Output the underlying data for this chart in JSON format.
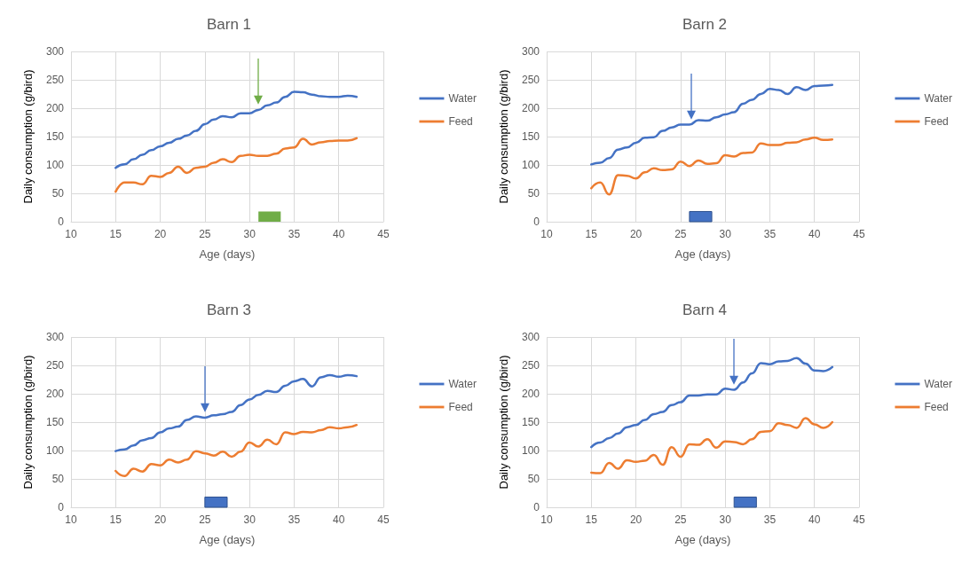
{
  "chart_data": [
    {
      "type": "line",
      "title": "Barn 1",
      "xlabel": "Age (days)",
      "ylabel": "Daily consumption (g/bird)",
      "xlim": [
        10,
        45
      ],
      "xticks": [
        10,
        15,
        20,
        25,
        30,
        35,
        40,
        45
      ],
      "ylim": [
        0,
        300
      ],
      "yticks": [
        0,
        50,
        100,
        150,
        200,
        250,
        300
      ],
      "grid": true,
      "legend": "right",
      "marker": "none",
      "x": [
        15,
        16,
        17,
        18,
        19,
        20,
        21,
        22,
        23,
        24,
        25,
        26,
        27,
        28,
        29,
        30,
        31,
        32,
        33,
        34,
        35,
        36,
        37,
        38,
        39,
        40,
        41,
        42
      ],
      "series": [
        {
          "name": "Water",
          "color": "#4472c4",
          "values": [
            95,
            101,
            110,
            118,
            126,
            133,
            139,
            146,
            152,
            160,
            172,
            180,
            186,
            184,
            191,
            191,
            197,
            205,
            210,
            220,
            229,
            228,
            224,
            221,
            220,
            220,
            222,
            220
          ]
        },
        {
          "name": "Feed",
          "color": "#ed7d31",
          "values": [
            53,
            69,
            69,
            66,
            81,
            79,
            86,
            97,
            86,
            95,
            97,
            104,
            110,
            105,
            116,
            118,
            116,
            116,
            120,
            129,
            131,
            146,
            136,
            140,
            142,
            143,
            143,
            147
          ]
        }
      ],
      "ref_lines": [
        {
          "axis": "x",
          "value": 31,
          "color": "#70ad47"
        }
      ],
      "bands": [
        {
          "axis": "x",
          "from": 31,
          "to": 33.5,
          "color": "#70ad47"
        }
      ]
    },
    {
      "type": "line",
      "title": "Barn 2",
      "xlabel": "Age (days)",
      "ylabel": "Daily consumption (g/bird)",
      "xlim": [
        10,
        45
      ],
      "xticks": [
        10,
        15,
        20,
        25,
        30,
        35,
        40,
        45
      ],
      "ylim": [
        0,
        300
      ],
      "yticks": [
        0,
        50,
        100,
        150,
        200,
        250,
        300
      ],
      "grid": true,
      "legend": "right",
      "marker": "none",
      "x": [
        15,
        16,
        17,
        18,
        19,
        20,
        21,
        22,
        23,
        24,
        25,
        26,
        27,
        28,
        29,
        30,
        31,
        32,
        33,
        34,
        35,
        36,
        37,
        38,
        39,
        40,
        41,
        42
      ],
      "series": [
        {
          "name": "Water",
          "color": "#4472c4",
          "values": [
            101,
            104,
            112,
            127,
            131,
            139,
            148,
            149,
            160,
            166,
            171,
            171,
            179,
            178,
            184,
            189,
            193,
            208,
            215,
            225,
            234,
            232,
            225,
            237,
            232,
            239,
            240,
            241
          ]
        },
        {
          "name": "Feed",
          "color": "#ed7d31",
          "values": [
            59,
            69,
            48,
            82,
            81,
            76,
            87,
            94,
            91,
            92,
            106,
            98,
            108,
            102,
            103,
            117,
            115,
            121,
            122,
            138,
            135,
            135,
            139,
            140,
            145,
            148,
            144,
            145
          ]
        }
      ],
      "ref_lines": [
        {
          "axis": "x",
          "value": 26.2,
          "color": "#4472c4"
        }
      ],
      "bands": [
        {
          "axis": "x",
          "from": 26,
          "to": 28.5,
          "color": "#4472c4"
        }
      ]
    },
    {
      "type": "line",
      "title": "Barn 3",
      "xlabel": "Age (days)",
      "ylabel": "Daily consumption (g/bird)",
      "xlim": [
        10,
        45
      ],
      "xticks": [
        10,
        15,
        20,
        25,
        30,
        35,
        40,
        45
      ],
      "ylim": [
        0,
        300
      ],
      "yticks": [
        0,
        50,
        100,
        150,
        200,
        250,
        300
      ],
      "grid": true,
      "legend": "right",
      "marker": "none",
      "x": [
        15,
        16,
        17,
        18,
        19,
        20,
        21,
        22,
        23,
        24,
        25,
        26,
        27,
        28,
        29,
        30,
        31,
        32,
        33,
        34,
        35,
        36,
        37,
        38,
        39,
        40,
        41,
        42
      ],
      "series": [
        {
          "name": "Water",
          "color": "#4472c4",
          "values": [
            99,
            102,
            109,
            118,
            122,
            132,
            139,
            142,
            154,
            160,
            158,
            162,
            164,
            168,
            180,
            190,
            198,
            205,
            203,
            214,
            222,
            226,
            213,
            229,
            233,
            230,
            233,
            231
          ]
        },
        {
          "name": "Feed",
          "color": "#ed7d31",
          "values": [
            64,
            55,
            68,
            63,
            76,
            74,
            84,
            79,
            84,
            99,
            95,
            91,
            98,
            89,
            98,
            114,
            107,
            119,
            111,
            132,
            129,
            133,
            132,
            136,
            141,
            139,
            141,
            145
          ]
        }
      ],
      "ref_lines": [
        {
          "axis": "x",
          "value": 25,
          "color": "#4472c4"
        }
      ],
      "bands": [
        {
          "axis": "x",
          "from": 25,
          "to": 27.5,
          "color": "#4472c4"
        }
      ]
    },
    {
      "type": "line",
      "title": "Barn 4",
      "xlabel": "Age (days)",
      "ylabel": "Daily consumption (g/bird)",
      "xlim": [
        10,
        45
      ],
      "xticks": [
        10,
        15,
        20,
        25,
        30,
        35,
        40,
        45
      ],
      "ylim": [
        0,
        300
      ],
      "yticks": [
        0,
        50,
        100,
        150,
        200,
        250,
        300
      ],
      "grid": true,
      "legend": "right",
      "marker": "none",
      "x": [
        15,
        16,
        17,
        18,
        19,
        20,
        21,
        22,
        23,
        24,
        25,
        26,
        27,
        28,
        29,
        30,
        31,
        32,
        33,
        34,
        35,
        36,
        37,
        38,
        39,
        40,
        41,
        42
      ],
      "series": [
        {
          "name": "Water",
          "color": "#4472c4",
          "values": [
            106,
            114,
            122,
            130,
            141,
            145,
            154,
            164,
            168,
            180,
            185,
            197,
            197,
            199,
            199,
            209,
            207,
            220,
            236,
            254,
            252,
            257,
            258,
            263,
            253,
            241,
            240,
            247
          ]
        },
        {
          "name": "Feed",
          "color": "#ed7d31",
          "values": [
            61,
            60,
            78,
            68,
            83,
            80,
            82,
            92,
            75,
            106,
            89,
            111,
            110,
            120,
            105,
            116,
            115,
            111,
            120,
            133,
            134,
            148,
            145,
            140,
            157,
            146,
            140,
            150
          ]
        }
      ],
      "ref_lines": [
        {
          "axis": "x",
          "value": 31,
          "color": "#4472c4"
        }
      ],
      "bands": [
        {
          "axis": "x",
          "from": 31,
          "to": 33.5,
          "color": "#4472c4"
        }
      ]
    }
  ]
}
